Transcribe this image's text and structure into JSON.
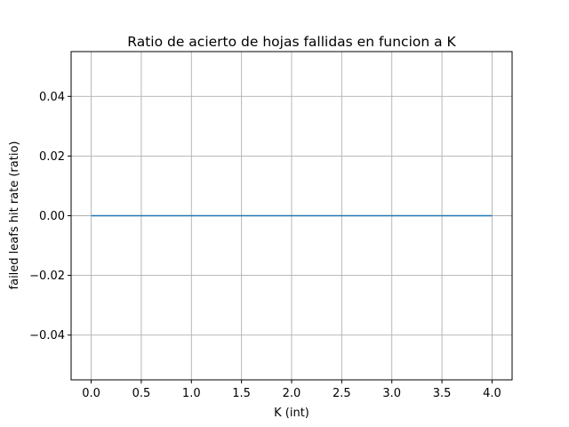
{
  "chart_data": {
    "type": "line",
    "title": "Ratio de acierto de hojas fallidas en funcion a K",
    "xlabel": "K (int)",
    "ylabel": "failed leafs hit rate (ratio)",
    "x": [
      0,
      1,
      2,
      3,
      4
    ],
    "series": [
      {
        "values": [
          0,
          0,
          0,
          0,
          0
        ],
        "color": "#1f77b4"
      }
    ],
    "xlim": [
      -0.2,
      4.2
    ],
    "ylim": [
      -0.055,
      0.055
    ],
    "xticks": [
      0.0,
      0.5,
      1.0,
      1.5,
      2.0,
      2.5,
      3.0,
      3.5,
      4.0
    ],
    "xtick_labels": [
      "0.0",
      "0.5",
      "1.0",
      "1.5",
      "2.0",
      "2.5",
      "3.0",
      "3.5",
      "4.0"
    ],
    "yticks": [
      -0.04,
      -0.02,
      0.0,
      0.02,
      0.04
    ],
    "ytick_labels": [
      "−0.04",
      "−0.02",
      "0.00",
      "0.02",
      "0.04"
    ],
    "grid": true,
    "grid_color": "#b0b0b0"
  }
}
